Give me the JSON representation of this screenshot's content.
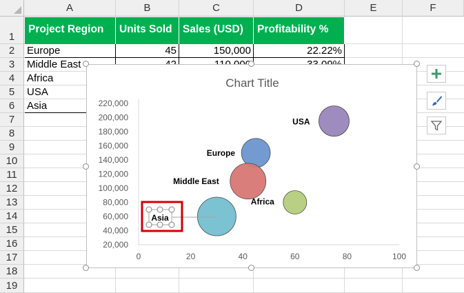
{
  "columns": [
    "A",
    "B",
    "C",
    "D",
    "E",
    "F"
  ],
  "rows": [
    "1",
    "2",
    "3",
    "4",
    "5",
    "6",
    "7",
    "8",
    "9",
    "10",
    "11",
    "12",
    "13",
    "14",
    "15",
    "16",
    "17",
    "18",
    "19"
  ],
  "table": {
    "headers": [
      "Project Region",
      "Units Sold",
      "Sales (USD)",
      "Profitability %"
    ],
    "rows": [
      [
        "Europe",
        "45",
        "150,000",
        "22.22%"
      ],
      [
        "Middle East",
        "42",
        "110,000",
        "33.09%"
      ],
      [
        "Africa",
        "",
        "",
        ""
      ],
      [
        "USA",
        "",
        "",
        ""
      ],
      [
        "Asia",
        "",
        "",
        ""
      ]
    ]
  },
  "colors": {
    "header_fill": "#00b050",
    "selection_box": "#d00000"
  },
  "chart_buttons": [
    "plus-icon",
    "brush-icon",
    "filter-icon"
  ],
  "chart_data": {
    "type": "scatter",
    "subtype": "bubble",
    "title": "Chart Title",
    "xlim": [
      0,
      100
    ],
    "ylim": [
      20000,
      220000
    ],
    "x_ticks": [
      "0",
      "20",
      "40",
      "60",
      "80",
      "100"
    ],
    "y_ticks": [
      "220,000",
      "200,000",
      "180,000",
      "160,000",
      "140,000",
      "120,000",
      "100,000",
      "80,000",
      "60,000",
      "40,000",
      "20,000"
    ],
    "points": [
      {
        "label": "Europe",
        "x": 45,
        "y": 150000,
        "color": "#6c96cf",
        "size": 21
      },
      {
        "label": "Middle East",
        "x": 42,
        "y": 110000,
        "color": "#d87774",
        "size": 26
      },
      {
        "label": "Africa",
        "x": 60,
        "y": 80000,
        "color": "#b5cc7c",
        "size": 17
      },
      {
        "label": "USA",
        "x": 75,
        "y": 195000,
        "color": "#9a86ba",
        "size": 22
      },
      {
        "label": "Asia",
        "x": 30,
        "y": 60000,
        "color": "#74bfd1",
        "size": 28
      }
    ],
    "grid": false,
    "legend": "none"
  }
}
